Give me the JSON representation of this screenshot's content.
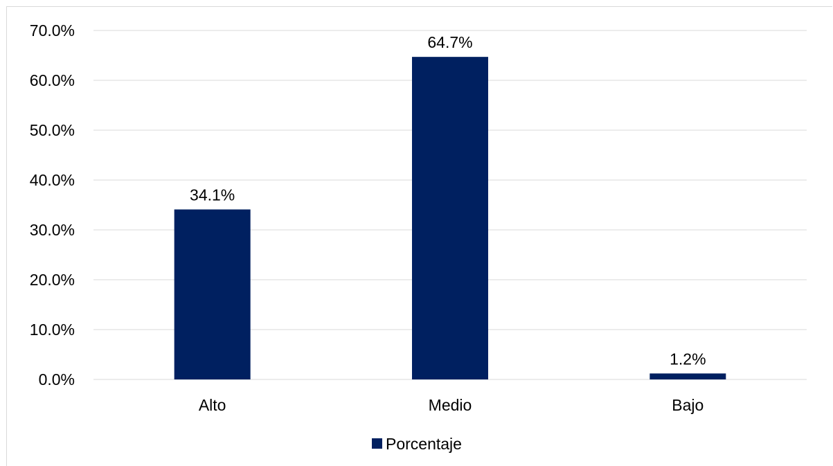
{
  "chart_data": {
    "type": "bar",
    "categories": [
      "Alto",
      "Medio",
      "Bajo"
    ],
    "series": [
      {
        "name": "Porcentaje",
        "values": [
          34.1,
          64.7,
          1.2
        ],
        "color": "#002060"
      }
    ],
    "data_labels": [
      "34.1%",
      "64.7%",
      "1.2%"
    ],
    "title": "",
    "xlabel": "",
    "ylabel": "",
    "ylim": [
      0,
      70
    ],
    "y_ticks": [
      0,
      10,
      20,
      30,
      40,
      50,
      60,
      70
    ],
    "y_tick_labels": [
      "0.0%",
      "10.0%",
      "20.0%",
      "30.0%",
      "40.0%",
      "50.0%",
      "60.0%",
      "70.0%"
    ],
    "grid": true,
    "grid_color": "#d9d9d9",
    "legend": {
      "position": "bottom",
      "entries": [
        "Porcentaje"
      ]
    }
  }
}
